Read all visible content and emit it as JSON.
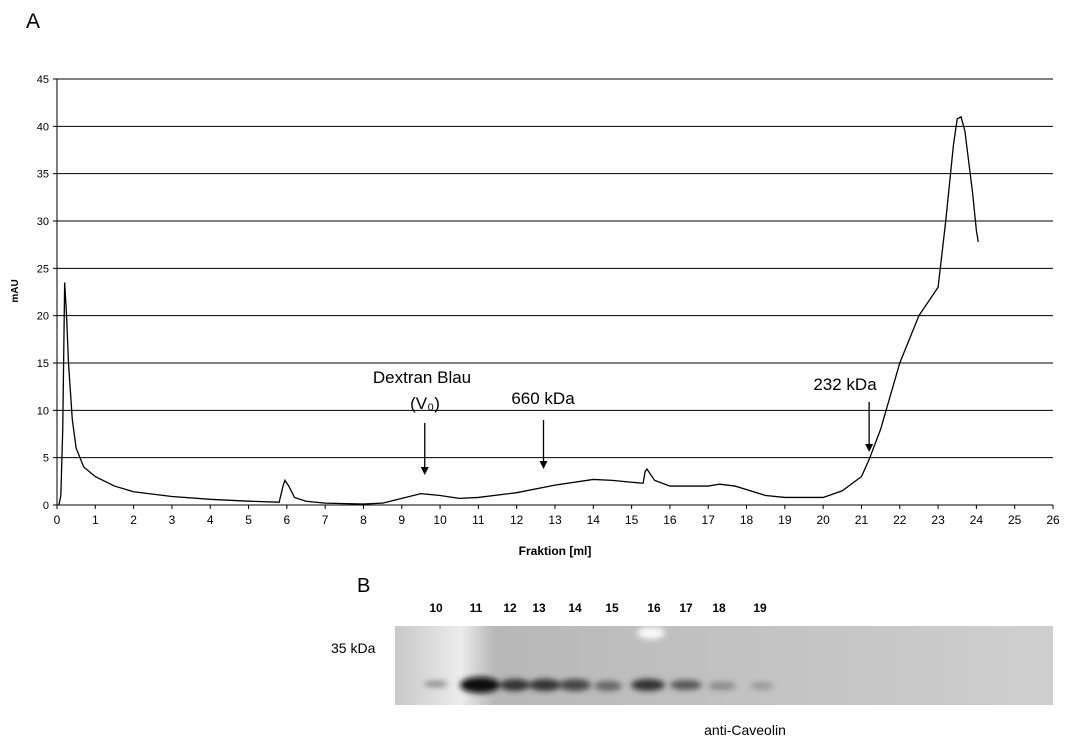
{
  "chart_data": {
    "type": "line",
    "panel_label": "A",
    "xlabel": "Fraktion [ml]",
    "ylabel": "mAU",
    "xlim": [
      0,
      26
    ],
    "xticks": [
      0,
      1,
      2,
      3,
      4,
      5,
      6,
      7,
      8,
      9,
      10,
      11,
      12,
      13,
      14,
      15,
      16,
      17,
      18,
      19,
      20,
      21,
      22,
      23,
      24,
      25,
      26
    ],
    "ylim": [
      0,
      45
    ],
    "yticks": [
      0,
      5,
      10,
      15,
      20,
      25,
      30,
      35,
      40,
      45
    ],
    "grid": true,
    "annotations": [
      {
        "text": "Dextran Blau",
        "x": 9.6
      },
      {
        "text": "(V₀)",
        "x": 9.6
      },
      {
        "text": "660 kDa",
        "x": 12.7
      },
      {
        "text": "232 kDa",
        "x": 21.2
      }
    ],
    "series": [
      {
        "color": "#000000",
        "x": [
          0.05,
          0.1,
          0.15,
          0.2,
          0.25,
          0.3,
          0.4,
          0.5,
          0.7,
          1,
          1.5,
          2,
          3,
          4,
          5,
          5.8,
          5.9,
          5.95,
          6.05,
          6.2,
          6.5,
          7,
          8,
          8.5,
          9,
          9.5,
          10,
          10.5,
          11,
          12,
          13,
          14,
          14.5,
          15,
          15.3,
          15.35,
          15.4,
          15.6,
          16,
          17,
          17.3,
          17.7,
          18.5,
          19,
          20,
          20.5,
          21,
          21.2,
          21.5,
          22,
          22.5,
          23,
          23.2,
          23.4,
          23.5,
          23.6,
          23.7,
          23.9,
          24,
          24.05
        ],
        "values": [
          0,
          1,
          8,
          23.5,
          20,
          15,
          9,
          6,
          4,
          3,
          2,
          1.4,
          0.9,
          0.6,
          0.4,
          0.3,
          2,
          2.6,
          2,
          0.8,
          0.4,
          0.2,
          0.1,
          0.2,
          0.7,
          1.2,
          1,
          0.7,
          0.8,
          1.3,
          2.1,
          2.7,
          2.6,
          2.4,
          2.3,
          3.5,
          3.8,
          2.6,
          2,
          2,
          2.2,
          2,
          1,
          0.8,
          0.8,
          1.5,
          3,
          4.8,
          8,
          15,
          20,
          23,
          30,
          38,
          40.8,
          41,
          39.5,
          33,
          29,
          27.8
        ]
      }
    ]
  },
  "blot": {
    "panel_label": "B",
    "lanes": [
      "10",
      "11",
      "12",
      "13",
      "14",
      "15",
      "16",
      "17",
      "18",
      "19"
    ],
    "marker": "35 kDa",
    "antibody": "anti-Caveolin"
  }
}
